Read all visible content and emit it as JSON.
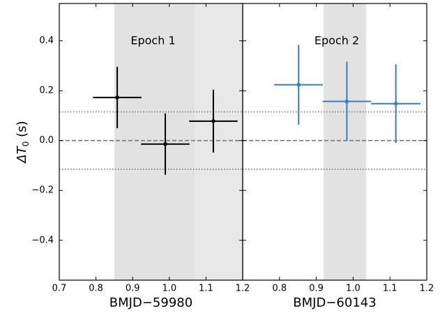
{
  "chart_data": [
    {
      "type": "scatter",
      "annotation": "Epoch 1",
      "xlabel": "BMJD−59980",
      "ylabel": {
        "main": "ΔT",
        "sub": "0",
        "unit": "(s)"
      },
      "color": "#000000",
      "x": [
        0.858,
        0.989,
        1.12
      ],
      "xerr": [
        0.066,
        0.066,
        0.066
      ],
      "values": [
        0.173,
        -0.014,
        0.078
      ],
      "yerr": [
        0.123,
        0.123,
        0.126
      ],
      "xlim": [
        0.7,
        1.2
      ],
      "xticks": [
        0.7,
        0.8,
        0.9,
        {
          "value": 1.0,
          "label": "1.0"
        },
        1.1,
        1.2
      ],
      "ylim": [
        -0.56,
        0.55
      ],
      "yticks": [
        {
          "value": -0.4,
          "label": "−0.4"
        },
        {
          "value": -0.2,
          "label": "−0.2"
        },
        {
          "value": 0,
          "label": "0.0"
        },
        0.2,
        0.4
      ],
      "spans": [
        {
          "from": 0.85,
          "to": 1.07,
          "color": "#e2e2e2"
        },
        {
          "from": 1.07,
          "to": 1.2,
          "color": "#e8e8e8"
        }
      ],
      "hlines": [
        {
          "value": 0,
          "style": "dashed"
        },
        {
          "value": 0.115,
          "style": "dotted"
        },
        {
          "value": -0.115,
          "style": "dotted"
        }
      ]
    },
    {
      "type": "scatter",
      "annotation": "Epoch 2",
      "xlabel": "BMJD−60143",
      "color": "#3a7dbd",
      "x": [
        0.852,
        0.983,
        1.116
      ],
      "xerr": [
        0.066,
        0.066,
        0.067
      ],
      "values": [
        0.224,
        0.157,
        0.148
      ],
      "yerr": [
        0.16,
        0.16,
        0.158
      ],
      "xlim": [
        0.7,
        1.2
      ],
      "xticks": [
        0.8,
        0.9,
        {
          "value": 1.0,
          "label": "1.0"
        },
        1.1,
        1.2
      ],
      "ylim": [
        -0.56,
        0.55
      ],
      "yticks": [
        -0.4,
        -0.2,
        0,
        0.2,
        0.4
      ],
      "spans": [
        {
          "from": 0.92,
          "to": 1.035,
          "color": "#e2e2e2"
        }
      ],
      "hlines": [
        {
          "value": 0,
          "style": "dashed"
        },
        {
          "value": 0.115,
          "style": "dotted"
        },
        {
          "value": -0.115,
          "style": "dotted"
        }
      ]
    }
  ]
}
